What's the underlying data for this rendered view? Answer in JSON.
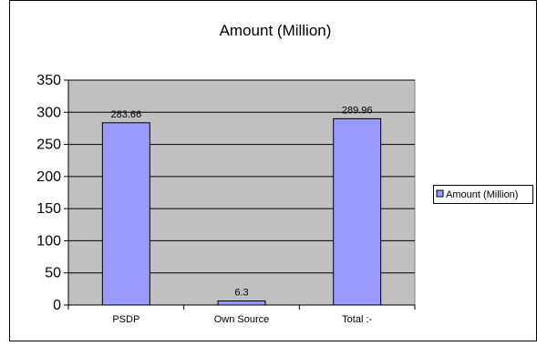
{
  "chart_data": {
    "type": "bar",
    "title": "Amount (Million)",
    "categories": [
      "PSDP",
      "Own Source",
      "Total :-"
    ],
    "series": [
      {
        "name": "Amount (Million)",
        "values": [
          283.66,
          6.3,
          289.96
        ],
        "color": "#9999ff"
      }
    ],
    "data_labels": [
      "283.66",
      "6.3",
      "289.96"
    ],
    "yticks": [
      "0",
      "50",
      "100",
      "150",
      "200",
      "250",
      "300",
      "350"
    ],
    "ylim": [
      0,
      350
    ],
    "grid": true,
    "plot_background": "#c0c0c0",
    "legend": {
      "position": "right",
      "entries": [
        "Amount (Million)"
      ]
    }
  }
}
